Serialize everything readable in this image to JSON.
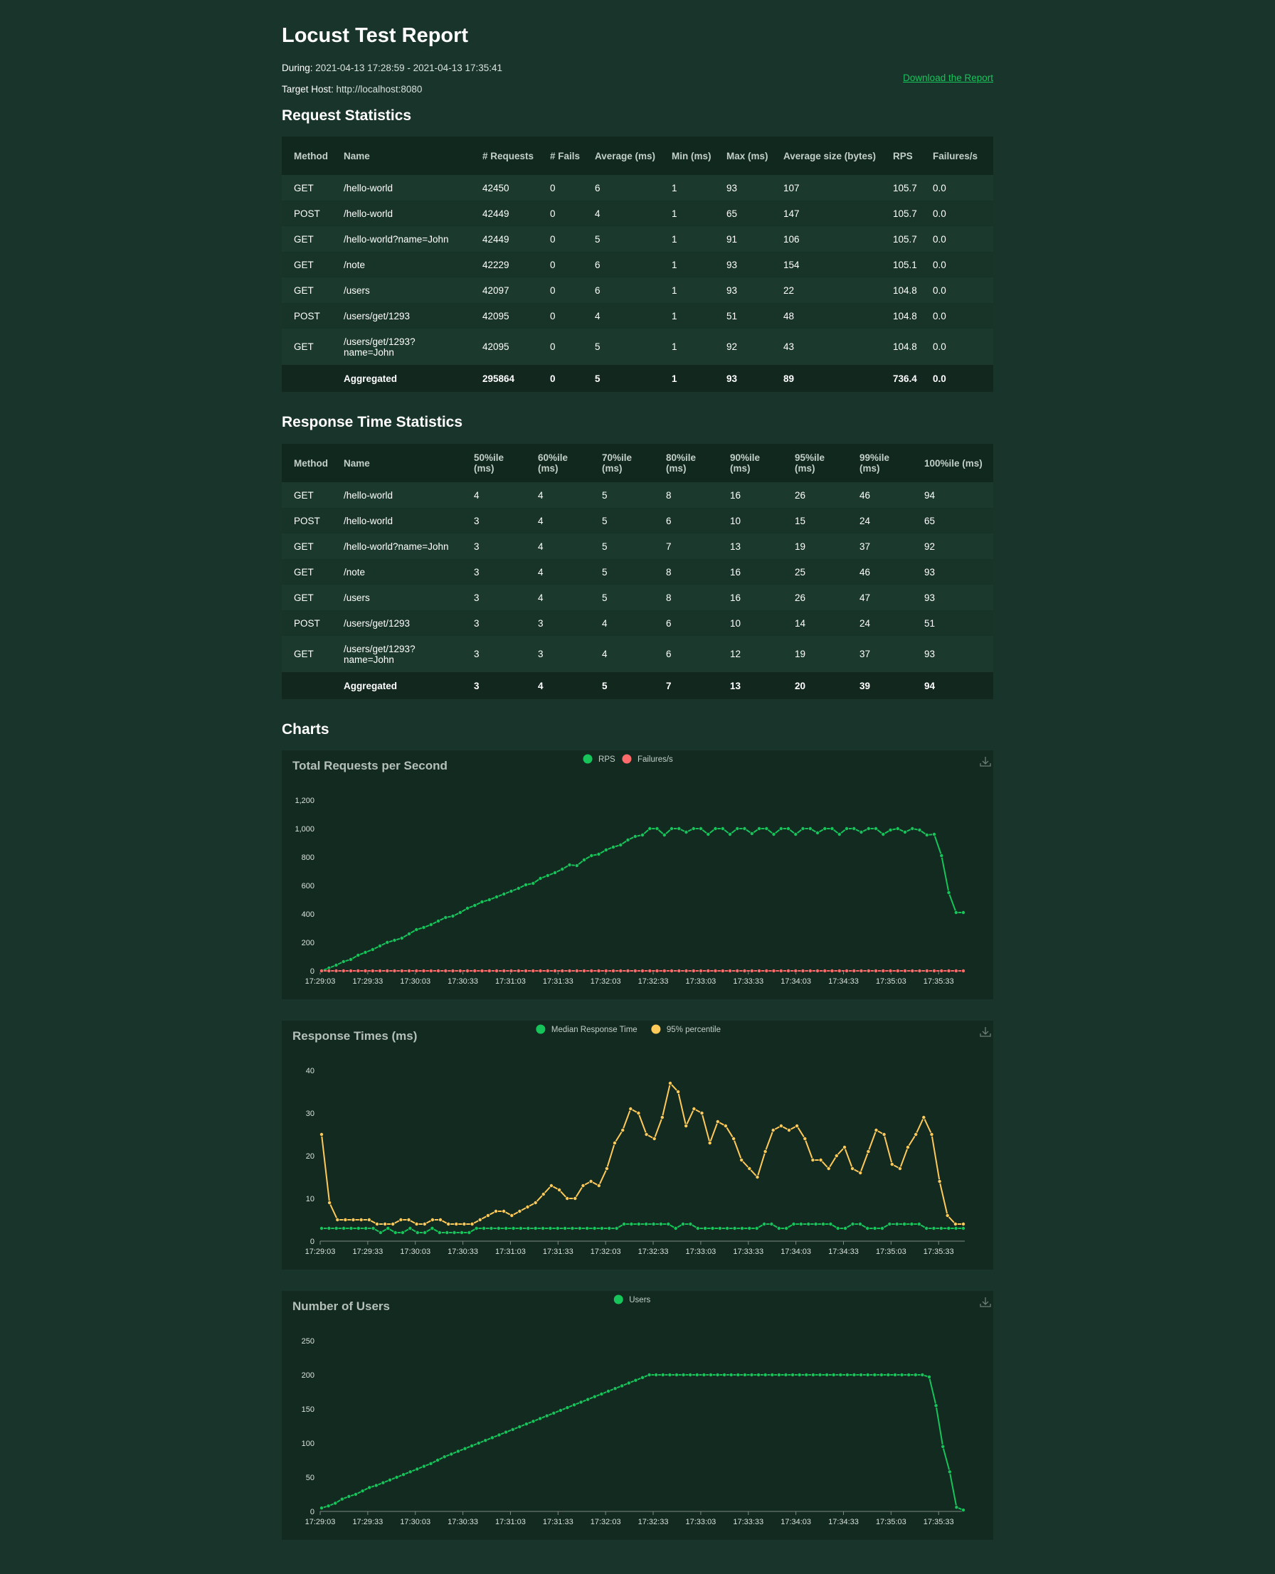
{
  "header": {
    "title": "Locust Test Report",
    "during_label": "During:",
    "during_value": "2021-04-13 17:28:59 - 2021-04-13 17:35:41",
    "host_label": "Target Host:",
    "host_value": "http://localhost:8080",
    "download_label": "Download the Report"
  },
  "request_stats": {
    "heading": "Request Statistics",
    "columns": [
      "Method",
      "Name",
      "# Requests",
      "# Fails",
      "Average (ms)",
      "Min (ms)",
      "Max (ms)",
      "Average size (bytes)",
      "RPS",
      "Failures/s"
    ],
    "rows": [
      [
        "GET",
        "/hello-world",
        "42450",
        "0",
        "6",
        "1",
        "93",
        "107",
        "105.7",
        "0.0"
      ],
      [
        "POST",
        "/hello-world",
        "42449",
        "0",
        "4",
        "1",
        "65",
        "147",
        "105.7",
        "0.0"
      ],
      [
        "GET",
        "/hello-world?name=John",
        "42449",
        "0",
        "5",
        "1",
        "91",
        "106",
        "105.7",
        "0.0"
      ],
      [
        "GET",
        "/note",
        "42229",
        "0",
        "6",
        "1",
        "93",
        "154",
        "105.1",
        "0.0"
      ],
      [
        "GET",
        "/users",
        "42097",
        "0",
        "6",
        "1",
        "93",
        "22",
        "104.8",
        "0.0"
      ],
      [
        "POST",
        "/users/get/1293",
        "42095",
        "0",
        "4",
        "1",
        "51",
        "48",
        "104.8",
        "0.0"
      ],
      [
        "GET",
        "/users/get/1293?name=John",
        "42095",
        "0",
        "5",
        "1",
        "92",
        "43",
        "104.8",
        "0.0"
      ]
    ],
    "aggregated": [
      "",
      "Aggregated",
      "295864",
      "0",
      "5",
      "1",
      "93",
      "89",
      "736.4",
      "0.0"
    ]
  },
  "response_stats": {
    "heading": "Response Time Statistics",
    "columns": [
      "Method",
      "Name",
      "50%ile (ms)",
      "60%ile (ms)",
      "70%ile (ms)",
      "80%ile (ms)",
      "90%ile (ms)",
      "95%ile (ms)",
      "99%ile (ms)",
      "100%ile (ms)"
    ],
    "rows": [
      [
        "GET",
        "/hello-world",
        "4",
        "4",
        "5",
        "8",
        "16",
        "26",
        "46",
        "94"
      ],
      [
        "POST",
        "/hello-world",
        "3",
        "4",
        "5",
        "6",
        "10",
        "15",
        "24",
        "65"
      ],
      [
        "GET",
        "/hello-world?name=John",
        "3",
        "4",
        "5",
        "7",
        "13",
        "19",
        "37",
        "92"
      ],
      [
        "GET",
        "/note",
        "3",
        "4",
        "5",
        "8",
        "16",
        "25",
        "46",
        "93"
      ],
      [
        "GET",
        "/users",
        "3",
        "4",
        "5",
        "8",
        "16",
        "26",
        "47",
        "93"
      ],
      [
        "POST",
        "/users/get/1293",
        "3",
        "3",
        "4",
        "6",
        "10",
        "14",
        "24",
        "51"
      ],
      [
        "GET",
        "/users/get/1293?name=John",
        "3",
        "3",
        "4",
        "6",
        "12",
        "19",
        "37",
        "93"
      ]
    ],
    "aggregated": [
      "",
      "Aggregated",
      "3",
      "4",
      "5",
      "7",
      "13",
      "20",
      "39",
      "94"
    ]
  },
  "charts_heading": "Charts",
  "colors": {
    "background": "#19342a",
    "panel": "#132a21",
    "rps": "#17c45a",
    "failures": "#ff6b6b",
    "p95": "#ffca5a",
    "link": "#17c45a"
  },
  "chart_data": [
    {
      "type": "line",
      "title": "Total Requests per Second",
      "x_ticks": [
        "17:29:03",
        "17:29:33",
        "17:30:03",
        "17:30:33",
        "17:31:03",
        "17:31:33",
        "17:32:03",
        "17:32:33",
        "17:33:03",
        "17:33:33",
        "17:34:03",
        "17:34:33",
        "17:35:03",
        "17:35:33"
      ],
      "ylim": [
        0,
        1200
      ],
      "y_ticks": [
        "0",
        "200",
        "400",
        "600",
        "800",
        "1,000",
        "1,200"
      ],
      "legend_position": "top-center",
      "icon": "download-icon",
      "series": [
        {
          "name": "RPS",
          "color": "#17c45a",
          "values": [
            0,
            20,
            40,
            65,
            80,
            110,
            130,
            150,
            175,
            200,
            215,
            230,
            260,
            290,
            305,
            325,
            350,
            375,
            385,
            410,
            440,
            460,
            485,
            500,
            520,
            540,
            560,
            580,
            605,
            615,
            650,
            670,
            690,
            715,
            745,
            740,
            780,
            810,
            820,
            850,
            870,
            885,
            920,
            945,
            955,
            1000,
            1000,
            955,
            1000,
            1000,
            975,
            1000,
            1000,
            960,
            1000,
            1000,
            960,
            1000,
            1000,
            965,
            1000,
            1000,
            960,
            1000,
            1000,
            960,
            1000,
            1000,
            970,
            1000,
            1000,
            960,
            1000,
            1000,
            975,
            1000,
            1000,
            960,
            990,
            1000,
            975,
            1000,
            990,
            955,
            960,
            810,
            550,
            410,
            410
          ]
        },
        {
          "name": "Failures/s",
          "color": "#ff6b6b",
          "values": [
            0,
            0,
            0,
            0,
            0,
            0,
            0,
            0,
            0,
            0,
            0,
            0,
            0,
            0,
            0,
            0,
            0,
            0,
            0,
            0,
            0,
            0,
            0,
            0,
            0,
            0,
            0,
            0,
            0,
            0,
            0,
            0,
            0,
            0,
            0,
            0,
            0,
            0,
            0,
            0,
            0,
            0,
            0,
            0,
            0,
            0,
            0,
            0,
            0,
            0,
            0,
            0,
            0,
            0,
            0,
            0,
            0,
            0,
            0,
            0,
            0,
            0,
            0,
            0,
            0,
            0,
            0,
            0,
            0,
            0,
            0,
            0,
            0,
            0,
            0,
            0,
            0,
            0,
            0,
            0,
            0,
            0,
            0,
            0,
            0,
            0,
            0,
            0,
            0
          ]
        }
      ]
    },
    {
      "type": "line",
      "title": "Response Times (ms)",
      "x_ticks": [
        "17:29:03",
        "17:29:33",
        "17:30:03",
        "17:30:33",
        "17:31:03",
        "17:31:33",
        "17:32:03",
        "17:32:33",
        "17:33:03",
        "17:33:33",
        "17:34:03",
        "17:34:33",
        "17:35:03",
        "17:35:33"
      ],
      "ylim": [
        0,
        40
      ],
      "y_ticks": [
        "0",
        "10",
        "20",
        "30",
        "40"
      ],
      "legend_position": "top-center",
      "icon": "download-icon",
      "series": [
        {
          "name": "Median Response Time",
          "color": "#17c45a",
          "values": [
            3,
            3,
            3,
            3,
            3,
            3,
            3,
            3,
            2,
            3,
            2,
            2,
            3,
            2,
            2,
            3,
            2,
            2,
            2,
            2,
            2,
            3,
            3,
            3,
            3,
            3,
            3,
            3,
            3,
            3,
            3,
            3,
            3,
            3,
            3,
            3,
            3,
            3,
            3,
            3,
            3,
            4,
            4,
            4,
            4,
            4,
            4,
            4,
            3,
            4,
            4,
            3,
            3,
            3,
            3,
            3,
            3,
            3,
            3,
            3,
            4,
            4,
            3,
            3,
            4,
            4,
            4,
            4,
            4,
            4,
            3,
            3,
            4,
            4,
            3,
            3,
            3,
            4,
            4,
            4,
            4,
            4,
            3,
            3,
            3,
            3,
            3,
            3
          ]
        },
        {
          "name": "95% percentile",
          "color": "#ffca5a",
          "values": [
            25,
            9,
            5,
            5,
            5,
            5,
            5,
            4,
            4,
            4,
            5,
            5,
            4,
            4,
            5,
            5,
            4,
            4,
            4,
            4,
            5,
            6,
            7,
            7,
            6,
            7,
            8,
            9,
            11,
            13,
            12,
            10,
            10,
            13,
            14,
            13,
            17,
            23,
            26,
            31,
            30,
            25,
            24,
            29,
            37,
            35,
            27,
            31,
            30,
            23,
            28,
            27,
            24,
            19,
            17,
            15,
            21,
            26,
            27,
            26,
            27,
            24,
            19,
            19,
            17,
            20,
            22,
            17,
            16,
            21,
            26,
            25,
            18,
            17,
            22,
            25,
            29,
            25,
            14,
            6,
            4,
            4
          ]
        }
      ]
    },
    {
      "type": "line",
      "title": "Number of Users",
      "x_ticks": [
        "17:29:03",
        "17:29:33",
        "17:30:03",
        "17:30:33",
        "17:31:03",
        "17:31:33",
        "17:32:03",
        "17:32:33",
        "17:33:03",
        "17:33:33",
        "17:34:03",
        "17:34:33",
        "17:35:03",
        "17:35:33"
      ],
      "ylim": [
        0,
        250
      ],
      "y_ticks": [
        "0",
        "50",
        "100",
        "150",
        "200",
        "250"
      ],
      "legend_position": "top-center",
      "icon": "download-icon",
      "series": [
        {
          "name": "Users",
          "color": "#17c45a",
          "values": [
            5,
            8,
            12,
            18,
            22,
            25,
            30,
            35,
            38,
            42,
            46,
            50,
            54,
            58,
            62,
            66,
            70,
            75,
            80,
            84,
            88,
            92,
            96,
            100,
            104,
            108,
            112,
            116,
            120,
            124,
            128,
            132,
            136,
            140,
            144,
            148,
            152,
            156,
            160,
            164,
            168,
            172,
            176,
            180,
            184,
            188,
            192,
            196,
            200,
            200,
            200,
            200,
            200,
            200,
            200,
            200,
            200,
            200,
            200,
            200,
            200,
            200,
            200,
            200,
            200,
            200,
            200,
            200,
            200,
            200,
            200,
            200,
            200,
            200,
            200,
            200,
            200,
            200,
            200,
            200,
            200,
            200,
            200,
            200,
            200,
            200,
            200,
            200,
            200,
            197,
            155,
            95,
            58,
            6,
            2
          ]
        }
      ]
    }
  ]
}
